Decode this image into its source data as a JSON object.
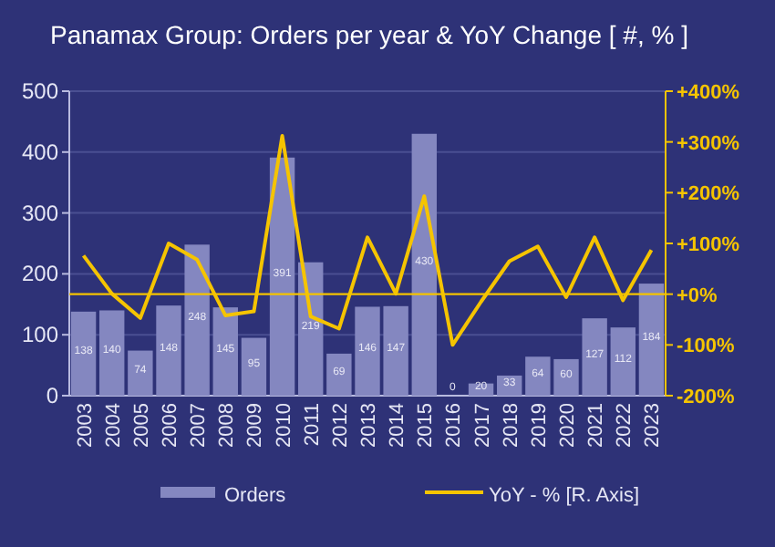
{
  "chart_data": {
    "type": "bar",
    "title": "Panamax Group: Orders per year & YoY Change [ #, % ]",
    "categories": [
      "2003",
      "2004",
      "2005",
      "2006",
      "2007",
      "2008",
      "2009",
      "2010",
      "2011",
      "2012",
      "2013",
      "2014",
      "2015",
      "2016",
      "2017",
      "2018",
      "2019",
      "2020",
      "2021",
      "2022",
      "2023"
    ],
    "series": [
      {
        "name": "Orders",
        "color": "#8487c0",
        "values": [
          138,
          140,
          74,
          148,
          248,
          145,
          95,
          391,
          219,
          69,
          146,
          147,
          430,
          0,
          20,
          33,
          64,
          60,
          127,
          112,
          184
        ],
        "value_labels": [
          "138",
          "140",
          "74",
          "148",
          "248",
          "145",
          "95",
          "391",
          "219",
          "69",
          "146",
          "147",
          "430",
          "0",
          "20",
          "33",
          "64",
          "60",
          "127",
          "112",
          "184"
        ]
      },
      {
        "name": "YoY - % [R. Axis]",
        "type": "line",
        "axis": "y2",
        "color": "#f5c400",
        "values": [
          76,
          1,
          -47,
          100,
          68,
          -42,
          -34,
          312,
          -44,
          -68,
          112,
          1,
          193,
          -100,
          -15,
          65,
          94,
          -6,
          112,
          -12,
          87
        ]
      }
    ],
    "ylim": [
      0,
      500
    ],
    "yticks": [
      0,
      100,
      200,
      300,
      400,
      500
    ],
    "y2lim": [
      -200,
      400
    ],
    "y2ticks": [
      {
        "value": -200,
        "label": "-200%"
      },
      {
        "value": -100,
        "label": "-100%"
      },
      {
        "value": 0,
        "label": "+0%"
      },
      {
        "value": 100,
        "label": "+100%"
      },
      {
        "value": 200,
        "label": "+200%"
      },
      {
        "value": 300,
        "label": "+300%"
      },
      {
        "value": 400,
        "label": "+400%"
      }
    ],
    "ref_lines": [
      {
        "axis": "y2",
        "value": 0,
        "color": "#f5c400"
      }
    ],
    "grid": "y",
    "legend": "bottom",
    "line_style": "solid",
    "marker": "none"
  }
}
